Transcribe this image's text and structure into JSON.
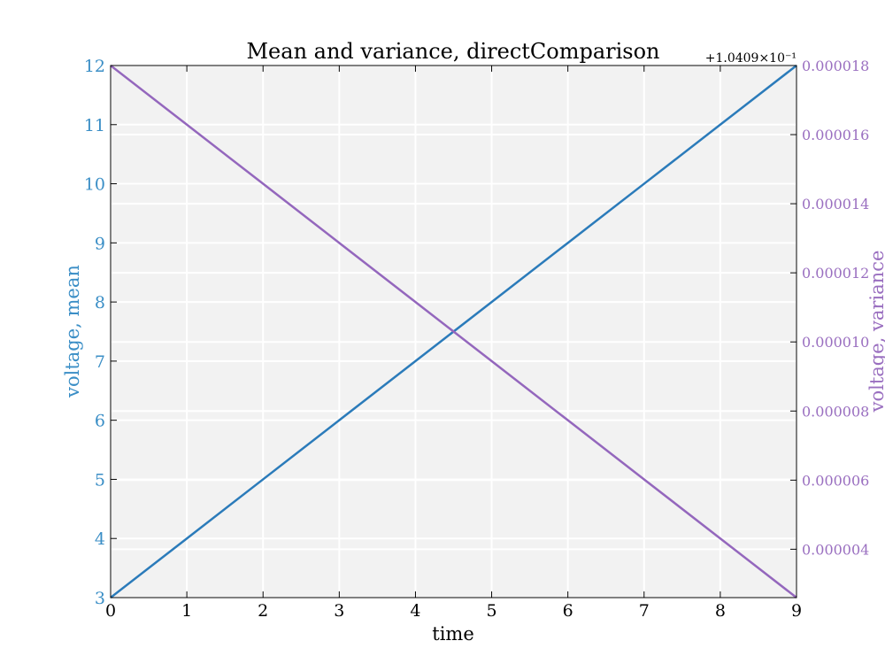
{
  "chart_data": {
    "type": "line",
    "title": "Mean and variance, directComparison",
    "xlabel": "time",
    "ylabel_left": "voltage, mean",
    "ylabel_right": "voltage, variance",
    "offset_label": "+1.0409×10⁻¹",
    "xlim": [
      0,
      9
    ],
    "ylim_left": [
      3,
      12
    ],
    "ylim_right": [
      2.6e-06,
      1.8e-05
    ],
    "x_ticks": [
      0,
      1,
      2,
      3,
      4,
      5,
      6,
      7,
      8,
      9
    ],
    "x_tick_labels": [
      "0",
      "1",
      "2",
      "3",
      "4",
      "5",
      "6",
      "7",
      "8",
      "9"
    ],
    "y_left_ticks": [
      3,
      4,
      5,
      6,
      7,
      8,
      9,
      10,
      11,
      12
    ],
    "y_left_tick_labels": [
      "3",
      "4",
      "5",
      "6",
      "7",
      "8",
      "9",
      "10",
      "11",
      "12"
    ],
    "y_right_ticks": [
      4e-06,
      6e-06,
      8e-06,
      1e-05,
      1.2e-05,
      1.4e-05,
      1.6e-05,
      1.8e-05
    ],
    "y_right_tick_labels": [
      "0.000004",
      "0.000006",
      "0.000008",
      "0.000010",
      "0.000012",
      "0.000014",
      "0.000016",
      "0.000018"
    ],
    "grid": true,
    "series": [
      {
        "axis": "left",
        "color": "#2b7bba",
        "x": [
          0,
          1,
          2,
          3,
          4,
          5,
          6,
          7,
          8,
          9
        ],
        "y": [
          3,
          4,
          5,
          6,
          7,
          8,
          9,
          10,
          11,
          12
        ]
      },
      {
        "axis": "right",
        "color": "#9467bd",
        "x": [
          0,
          1,
          2,
          3,
          4,
          5,
          6,
          7,
          8,
          9
        ],
        "y": [
          1.8e-05,
          1.62889e-05,
          1.45778e-05,
          1.28667e-05,
          1.11556e-05,
          9.4444e-06,
          7.7333e-06,
          6.0222e-06,
          4.3111e-06,
          2.6e-06
        ]
      }
    ],
    "colors": {
      "left_axis": "#3a8ec6",
      "right_axis": "#9a6fc0",
      "plot_bg": "#f2f2f2",
      "grid": "#ffffff"
    }
  }
}
